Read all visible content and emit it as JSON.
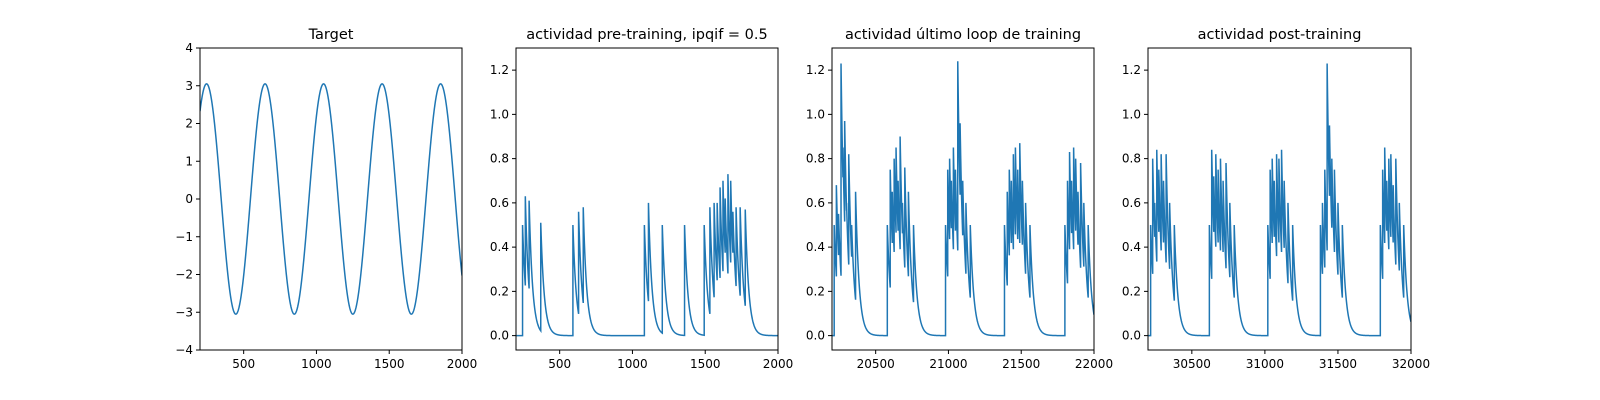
{
  "colors": {
    "line": "#1f77b4",
    "axes": "#000000",
    "background": "#ffffff"
  },
  "chart_data": [
    {
      "type": "line",
      "title": "Target",
      "xlabel": "",
      "ylabel": "",
      "xlim": [
        200,
        2000
      ],
      "ylim": [
        -4,
        4
      ],
      "xticks": [
        500,
        1000,
        1500,
        2000
      ],
      "yticks": [
        -4,
        -3,
        -2,
        -1,
        0,
        1,
        2,
        3,
        4
      ],
      "grid": false,
      "series": [
        {
          "kind": "sine",
          "x_range": [
            200,
            2000
          ],
          "amplitude": 3.05,
          "period": 402,
          "peak_x": [
            245,
            647,
            1049,
            1451,
            1853
          ],
          "trough_x": [
            446,
            848,
            1250,
            1652
          ],
          "start_y": 2.3,
          "end_y": -2.2
        }
      ]
    },
    {
      "type": "line",
      "title": "actividad pre-training, ipqif = 0.5",
      "xlabel": "",
      "ylabel": "",
      "xlim": [
        200,
        2000
      ],
      "ylim": [
        -0.065,
        1.3
      ],
      "xticks": [
        500,
        1000,
        1500,
        2000
      ],
      "yticks": [
        0.0,
        0.2,
        0.4,
        0.6,
        0.8,
        1.0,
        1.2
      ],
      "grid": false,
      "series": [
        {
          "kind": "spike_train",
          "x_range": [
            200,
            2000
          ],
          "baseline": 0.0,
          "spikes": [
            [
              245,
              0.5
            ],
            [
              264,
              0.63
            ],
            [
              290,
              0.61
            ],
            [
              370,
              0.51
            ],
            [
              591,
              0.5
            ],
            [
              630,
              0.56
            ],
            [
              662,
              0.58
            ],
            [
              1082,
              0.5
            ],
            [
              1110,
              0.6
            ],
            [
              1205,
              0.5
            ],
            [
              1358,
              0.5
            ],
            [
              1493,
              0.5
            ],
            [
              1532,
              0.58
            ],
            [
              1561,
              0.6
            ],
            [
              1582,
              0.6
            ],
            [
              1602,
              0.67
            ],
            [
              1622,
              0.7
            ],
            [
              1637,
              0.62
            ],
            [
              1656,
              0.73
            ],
            [
              1675,
              0.7
            ],
            [
              1690,
              0.56
            ],
            [
              1712,
              0.58
            ],
            [
              1740,
              0.58
            ],
            [
              1775,
              0.57
            ]
          ]
        }
      ]
    },
    {
      "type": "line",
      "title": "actividad último loop de training",
      "xlabel": "",
      "ylabel": "",
      "xlim": [
        20200,
        22000
      ],
      "ylim": [
        -0.065,
        1.3
      ],
      "xticks": [
        20500,
        21000,
        21500,
        22000
      ],
      "yticks": [
        0.0,
        0.2,
        0.4,
        0.6,
        0.8,
        1.0,
        1.2
      ],
      "grid": false,
      "series": [
        {
          "kind": "spike_train",
          "x_range": [
            20200,
            22000
          ],
          "baseline": 0.0,
          "spikes": [
            [
              20215,
              0.5
            ],
            [
              20230,
              0.68
            ],
            [
              20245,
              0.55
            ],
            [
              20262,
              1.23
            ],
            [
              20275,
              0.85
            ],
            [
              20287,
              0.97
            ],
            [
              20300,
              0.6
            ],
            [
              20315,
              0.82
            ],
            [
              20335,
              0.5
            ],
            [
              20362,
              0.65
            ],
            [
              20580,
              0.5
            ],
            [
              20600,
              0.75
            ],
            [
              20614,
              0.65
            ],
            [
              20627,
              0.8
            ],
            [
              20640,
              0.85
            ],
            [
              20654,
              0.7
            ],
            [
              20668,
              0.9
            ],
            [
              20684,
              0.6
            ],
            [
              20700,
              0.76
            ],
            [
              20725,
              0.65
            ],
            [
              20760,
              0.5
            ],
            [
              20980,
              0.5
            ],
            [
              20995,
              0.75
            ],
            [
              21008,
              0.8
            ],
            [
              21020,
              0.7
            ],
            [
              21034,
              0.85
            ],
            [
              21048,
              0.75
            ],
            [
              21064,
              1.24
            ],
            [
              21080,
              0.96
            ],
            [
              21098,
              0.7
            ],
            [
              21120,
              0.6
            ],
            [
              21150,
              0.5
            ],
            [
              21385,
              0.5
            ],
            [
              21404,
              0.65
            ],
            [
              21418,
              0.75
            ],
            [
              21432,
              0.7
            ],
            [
              21446,
              0.82
            ],
            [
              21460,
              0.85
            ],
            [
              21476,
              0.75
            ],
            [
              21490,
              0.87
            ],
            [
              21508,
              0.7
            ],
            [
              21530,
              0.6
            ],
            [
              21560,
              0.5
            ],
            [
              21800,
              0.5
            ],
            [
              21818,
              0.7
            ],
            [
              21832,
              0.83
            ],
            [
              21846,
              0.7
            ],
            [
              21860,
              0.85
            ],
            [
              21874,
              0.8
            ],
            [
              21890,
              0.65
            ],
            [
              21908,
              0.78
            ],
            [
              21930,
              0.6
            ],
            [
              21960,
              0.5
            ]
          ]
        }
      ]
    },
    {
      "type": "line",
      "title": "actividad post-training",
      "xlabel": "",
      "ylabel": "",
      "xlim": [
        30200,
        32000
      ],
      "ylim": [
        -0.065,
        1.3
      ],
      "xticks": [
        30500,
        31000,
        31500,
        32000
      ],
      "yticks": [
        0.0,
        0.2,
        0.4,
        0.6,
        0.8,
        1.0,
        1.2
      ],
      "grid": false,
      "series": [
        {
          "kind": "spike_train",
          "x_range": [
            30200,
            32000
          ],
          "baseline": 0.0,
          "spikes": [
            [
              30218,
              0.5
            ],
            [
              30232,
              0.8
            ],
            [
              30246,
              0.6
            ],
            [
              30260,
              0.84
            ],
            [
              30274,
              0.75
            ],
            [
              30290,
              0.82
            ],
            [
              30306,
              0.7
            ],
            [
              30324,
              0.82
            ],
            [
              30348,
              0.6
            ],
            [
              30380,
              0.5
            ],
            [
              30620,
              0.5
            ],
            [
              30636,
              0.84
            ],
            [
              30650,
              0.72
            ],
            [
              30664,
              0.82
            ],
            [
              30680,
              0.75
            ],
            [
              30696,
              0.8
            ],
            [
              30714,
              0.7
            ],
            [
              30734,
              0.78
            ],
            [
              30760,
              0.6
            ],
            [
              30790,
              0.5
            ],
            [
              31020,
              0.5
            ],
            [
              31036,
              0.75
            ],
            [
              31050,
              0.8
            ],
            [
              31064,
              0.7
            ],
            [
              31080,
              0.82
            ],
            [
              31096,
              0.8
            ],
            [
              31114,
              0.84
            ],
            [
              31132,
              0.7
            ],
            [
              31158,
              0.6
            ],
            [
              31190,
              0.5
            ],
            [
              31380,
              0.5
            ],
            [
              31394,
              0.6
            ],
            [
              31410,
              0.75
            ],
            [
              31426,
              1.23
            ],
            [
              31442,
              0.95
            ],
            [
              31458,
              0.8
            ],
            [
              31476,
              0.75
            ],
            [
              31500,
              0.6
            ],
            [
              31530,
              0.5
            ],
            [
              31790,
              0.5
            ],
            [
              31806,
              0.75
            ],
            [
              31820,
              0.85
            ],
            [
              31834,
              0.7
            ],
            [
              31848,
              0.8
            ],
            [
              31862,
              0.82
            ],
            [
              31878,
              0.68
            ],
            [
              31896,
              0.8
            ],
            [
              31920,
              0.6
            ],
            [
              31950,
              0.5
            ]
          ]
        }
      ]
    }
  ]
}
